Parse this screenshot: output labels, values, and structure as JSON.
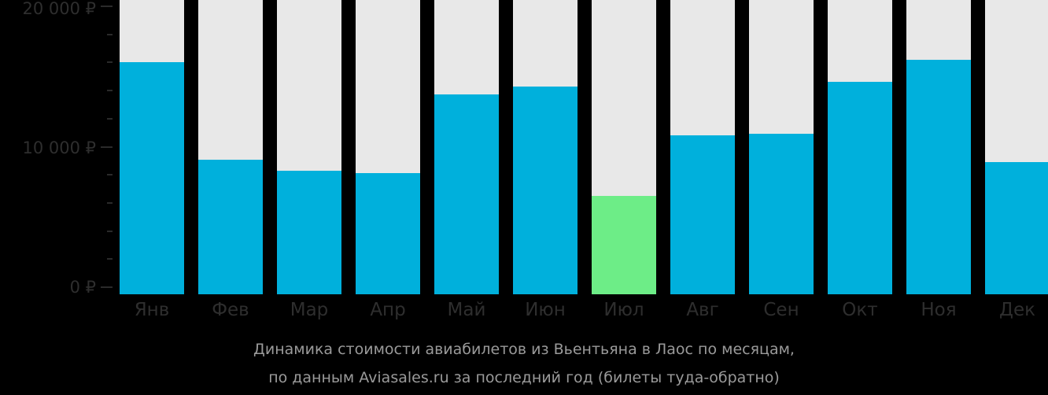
{
  "chart_data": {
    "type": "bar",
    "title": "Динамика стоимости авиабилетов из Вьентьяна в Лаос по месяцам, по данным Aviasales.ru за последний год (билеты туда-обратно)",
    "xlabel": "",
    "ylabel": "",
    "ylim": [
      0,
      20000
    ],
    "y_ticks": [
      "0 ₽",
      "10 000 ₽",
      "20 000 ₽"
    ],
    "grid": false,
    "categories": [
      "Янв",
      "Фев",
      "Мар",
      "Апр",
      "Май",
      "Июн",
      "Июл",
      "Авг",
      "Сен",
      "Окт",
      "Ноя",
      "Дек"
    ],
    "values": [
      16000,
      9100,
      8300,
      8100,
      13700,
      14300,
      6500,
      10800,
      10900,
      14600,
      16200,
      8900
    ],
    "highlight_index": 6,
    "colors": {
      "bar": "#00b0dc",
      "highlight": "#6ded87",
      "background_bar": "#e8e8e8"
    }
  },
  "caption": {
    "line1": "Динамика стоимости авиабилетов из Вьентьяна в Лаос по месяцам,",
    "line2": "по данным Aviasales.ru за последний год (билеты туда-обратно)"
  }
}
